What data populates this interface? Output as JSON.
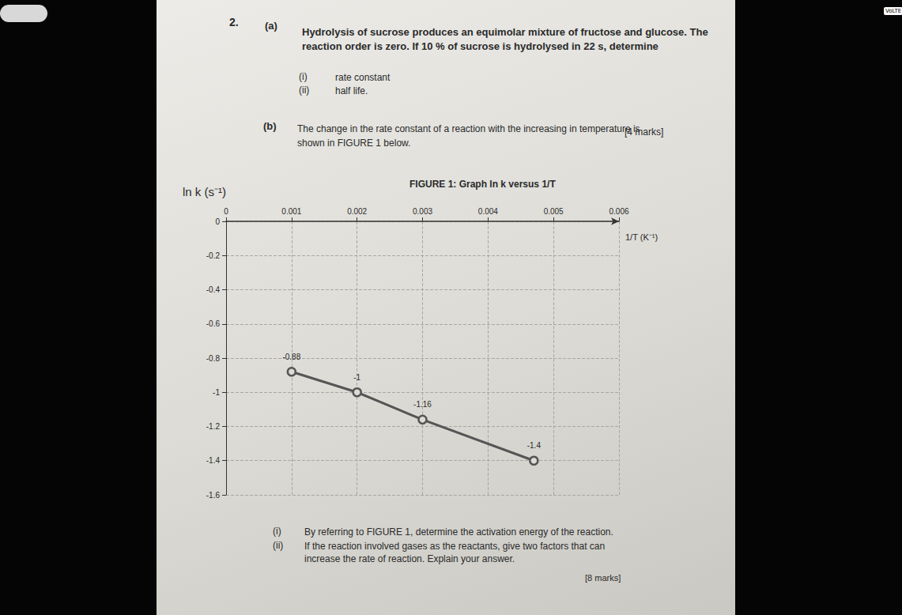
{
  "status_bar": {
    "badge": "VoLTE"
  },
  "question": {
    "number": "2.",
    "part_a": {
      "label": "(a)",
      "text": [
        "Hydrolysis of sucrose produces an equimolar mixture of fructose and glucose. The",
        "reaction order is zero. If 10 % of sucrose is hydrolysed in 22 s, determine"
      ],
      "items": [
        {
          "label": "(i)",
          "text": [
            "rate constant"
          ]
        },
        {
          "label": "(ii)",
          "text": [
            "half life."
          ]
        }
      ],
      "marks": "[4 marks]"
    },
    "part_b": {
      "label": "(b)",
      "text": [
        "The change in the rate constant of a reaction with the increasing in temperature is",
        "shown in FIGURE 1 below."
      ],
      "items": [
        {
          "label": "(i)",
          "text": [
            "By referring to FIGURE 1, determine the activation energy of the reaction."
          ]
        },
        {
          "label": "(ii)",
          "text": [
            "If the reaction involved gases as the reactants, give two factors that can",
            "increase the rate of reaction. Explain your answer."
          ]
        }
      ],
      "marks": "[8 marks]"
    }
  },
  "chart_data": {
    "type": "line",
    "title": "FIGURE 1: Graph ln k versus 1/T",
    "x_label": "1/T (K⁻¹)",
    "y_label": "ln k (s⁻¹)",
    "x": [
      0.001,
      0.002,
      0.003,
      0.0047
    ],
    "values": [
      -0.88,
      -1,
      -1.16,
      -1.4
    ],
    "color": "#555555",
    "marker": "circle",
    "data_labels": true,
    "xlim": [
      0,
      0.006
    ],
    "xticks": [
      0,
      0.001,
      0.002,
      0.003,
      0.004,
      0.005,
      0.006
    ],
    "ylim": [
      -1.6,
      0
    ],
    "yticks": [
      -1.6,
      -1.4,
      -1.2,
      -1,
      -0.8,
      -0.6,
      -0.4,
      -0.2,
      0
    ],
    "grid": true
  }
}
